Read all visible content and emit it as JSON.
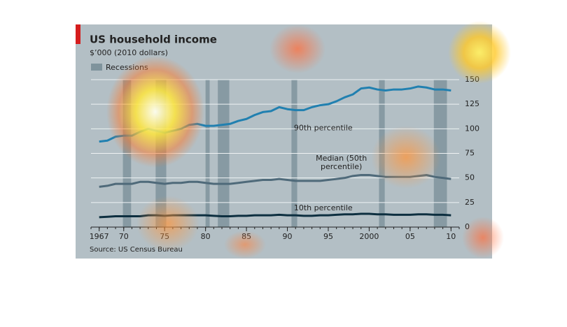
{
  "chart_data": {
    "type": "line",
    "title": "US household income",
    "subtitle": "$’000 (2010 dollars)",
    "source": "Source: US Census Bureau",
    "recession_label": "Recessions",
    "recession_color": "#7f939c",
    "recessions": [
      [
        1969.9,
        1970.9
      ],
      [
        1973.9,
        1975.2
      ],
      [
        1980.0,
        1980.5
      ],
      [
        1981.5,
        1982.9
      ],
      [
        1990.5,
        1991.2
      ],
      [
        2001.2,
        2001.9
      ],
      [
        2007.9,
        2009.5
      ]
    ],
    "x": [
      1967,
      1968,
      1969,
      1970,
      1971,
      1972,
      1973,
      1974,
      1975,
      1976,
      1977,
      1978,
      1979,
      1980,
      1981,
      1982,
      1983,
      1984,
      1985,
      1986,
      1987,
      1988,
      1989,
      1990,
      1991,
      1992,
      1993,
      1994,
      1995,
      1996,
      1997,
      1998,
      1999,
      2000,
      2001,
      2002,
      2003,
      2004,
      2005,
      2006,
      2007,
      2008,
      2009,
      2010
    ],
    "xlim": [
      1966,
      2011
    ],
    "xticks": [
      1967,
      {
        "value": 1970,
        "label": "70"
      },
      {
        "value": 1975,
        "label": "75"
      },
      {
        "value": 1980,
        "label": "80"
      },
      {
        "value": 1985,
        "label": "85"
      },
      {
        "value": 1990,
        "label": "90"
      },
      {
        "value": 1995,
        "label": "95"
      },
      2000,
      {
        "value": 2005,
        "label": "05"
      },
      {
        "value": 2010,
        "label": "10"
      }
    ],
    "ylim": [
      0,
      150
    ],
    "yticks": [
      0,
      25,
      50,
      75,
      100,
      125,
      150
    ],
    "grid": true,
    "series": [
      {
        "name": "90th percentile",
        "color": "#2180b0",
        "values": [
          87,
          88,
          92,
          93,
          93,
          97,
          100,
          98,
          96,
          98,
          100,
          104,
          105,
          103,
          103,
          104,
          105,
          108,
          110,
          114,
          117,
          118,
          122,
          120,
          119,
          119,
          122,
          124,
          125,
          128,
          132,
          135,
          141,
          142,
          140,
          139,
          140,
          140,
          141,
          143,
          142,
          140,
          140,
          139
        ]
      },
      {
        "name": "Median (50th percentile)",
        "color": "#4f6a7a",
        "values": [
          41,
          42,
          44,
          44,
          44,
          46,
          46,
          45,
          44,
          45,
          45,
          46,
          46,
          45,
          44,
          44,
          44,
          45,
          46,
          47,
          48,
          48,
          49,
          48,
          47,
          47,
          47,
          47,
          48,
          49,
          50,
          52,
          53,
          53,
          52,
          51,
          51,
          51,
          51,
          52,
          53,
          51,
          50,
          49
        ]
      },
      {
        "name": "10th percentile",
        "color": "#0d2f40",
        "values": [
          10,
          10.5,
          11,
          11,
          11,
          11,
          12,
          12,
          11.5,
          12,
          12,
          12,
          12,
          12,
          11.5,
          11,
          11,
          11.5,
          11.5,
          12,
          12,
          12,
          12.5,
          12,
          12,
          11.5,
          11.5,
          12,
          12,
          12.5,
          13,
          13,
          13.5,
          13.5,
          13,
          13,
          12.5,
          12.5,
          12.5,
          13,
          13,
          12.5,
          12.5,
          12
        ]
      }
    ]
  }
}
